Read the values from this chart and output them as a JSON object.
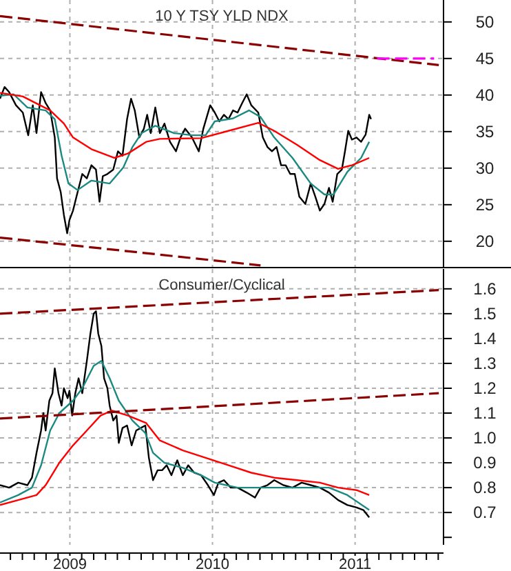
{
  "chart_data": [
    {
      "type": "line",
      "title": "10 Y TSY YLD NDX",
      "xlim": [
        2008.51,
        2011.62
      ],
      "ylim": [
        16.4,
        53
      ],
      "xticks": [
        2009,
        2010,
        2011
      ],
      "yticks": [
        20,
        25,
        30,
        35,
        40,
        45,
        50
      ],
      "tick_labels": "y",
      "grid": true,
      "line_style": "solid",
      "series": [
        {
          "color": "#000000",
          "x": [
            2008.51,
            2008.542,
            2008.574,
            2008.622,
            2008.67,
            2008.708,
            2008.74,
            2008.766,
            2008.798,
            2008.83,
            2008.862,
            2008.894,
            2008.91,
            2008.936,
            2008.958,
            2008.981,
            2008.997,
            2009.022,
            2009.054,
            2009.087,
            2009.119,
            2009.151,
            2009.183,
            2009.208,
            2009.231,
            2009.263,
            2009.304,
            2009.337,
            2009.369,
            2009.401,
            2009.429,
            2009.455,
            2009.487,
            2009.519,
            2009.542,
            2009.567,
            2009.599,
            2009.631,
            2009.663,
            2009.702,
            2009.744,
            2009.776,
            2009.808,
            2009.856,
            2009.904,
            2009.936,
            2009.984,
            2010.016,
            2010.048,
            2010.08,
            2010.112,
            2010.144,
            2010.176,
            2010.208,
            2010.24,
            2010.272,
            2010.321,
            2010.353,
            2010.385,
            2010.417,
            2010.449,
            2010.481,
            2010.513,
            2010.545,
            2010.577,
            2010.609,
            2010.651,
            2010.689,
            2010.721,
            2010.753,
            2010.785,
            2010.817,
            2010.843,
            2010.875,
            2010.907,
            2010.929,
            2010.952,
            2010.978,
            2011.01,
            2011.042,
            2011.074,
            2011.099,
            2011.112
          ],
          "values": [
            39.5,
            41.1,
            40.4,
            38.6,
            37.6,
            34.5,
            38.6,
            34.8,
            40.4,
            38.9,
            37.9,
            34.2,
            28.6,
            26.7,
            23.6,
            21.1,
            22.9,
            24.2,
            26.7,
            29.2,
            28.6,
            30.4,
            29.8,
            25.4,
            28.9,
            29.2,
            29.8,
            32.3,
            31.7,
            36.7,
            39.5,
            37.9,
            34.2,
            35.4,
            37.3,
            34.8,
            38.3,
            34.8,
            36.1,
            33.6,
            32.3,
            34.2,
            35.4,
            34.2,
            32.3,
            35.4,
            38.6,
            37.6,
            36.4,
            37.3,
            36.7,
            37.9,
            37.6,
            38.9,
            40.1,
            38.6,
            37.6,
            34.2,
            32.9,
            32.3,
            32.9,
            30.4,
            30.4,
            29.2,
            29.2,
            26.1,
            25.1,
            27.9,
            26.1,
            24.2,
            25.1,
            27.3,
            25.4,
            29.2,
            29.8,
            32.3,
            35.1,
            33.9,
            34.2,
            33.6,
            34.6,
            37.3,
            36.7
          ]
        },
        {
          "color": "#1a8a80",
          "x": [
            2008.51,
            2008.606,
            2008.702,
            2008.83,
            2008.894,
            2008.942,
            2008.99,
            2009.054,
            2009.151,
            2009.279,
            2009.375,
            2009.439,
            2009.503,
            2009.599,
            2009.728,
            2009.856,
            2009.952,
            2010.016,
            2010.144,
            2010.256,
            2010.337,
            2010.433,
            2010.561,
            2010.689,
            2010.785,
            2010.849,
            2010.946,
            2011.042,
            2011.099
          ],
          "values": [
            39.9,
            40.1,
            38.3,
            37.9,
            36.7,
            31.7,
            27.9,
            27.0,
            28.3,
            27.9,
            30.1,
            32.9,
            34.8,
            35.8,
            34.8,
            34.5,
            34.5,
            36.4,
            36.8,
            37.9,
            37.0,
            34.2,
            31.4,
            27.9,
            26.4,
            26.4,
            29.5,
            31.4,
            33.6
          ]
        },
        {
          "color": "#ff0000",
          "x": [
            2008.51,
            2008.67,
            2008.862,
            2008.958,
            2009.022,
            2009.151,
            2009.311,
            2009.407,
            2009.535,
            2009.631,
            2009.92,
            2010.112,
            2010.321,
            2010.433,
            2010.593,
            2010.753,
            2010.881,
            2010.978,
            2011.099
          ],
          "values": [
            40.3,
            39.8,
            37.9,
            36.1,
            34.2,
            32.6,
            31.4,
            32.0,
            33.6,
            34.0,
            34.1,
            35.1,
            36.2,
            35.1,
            33.2,
            31.1,
            29.9,
            30.4,
            31.4
          ]
        },
        {
          "color": "#8b0000",
          "line_style": "dashed",
          "x": [
            2008.51,
            2011.587
          ],
          "values": [
            50.8,
            44.1
          ]
        },
        {
          "color": "#8b0000",
          "line_style": "dashed",
          "x": [
            2008.51,
            2010.337
          ],
          "values": [
            20.5,
            16.7
          ]
        },
        {
          "color": "#ff00ff",
          "line_style": "dashed",
          "x": [
            2011.154,
            2011.554
          ],
          "values": [
            45,
            45
          ]
        }
      ]
    },
    {
      "type": "line",
      "title": "Consumer/Cyclical",
      "xlim": [
        2008.51,
        2011.62
      ],
      "ylim": [
        0.57,
        1.68
      ],
      "xticks": [
        {
          "value": 2008.583,
          "label": null
        },
        {
          "value": 2008.667,
          "label": null
        },
        {
          "value": 2008.75,
          "label": null
        },
        {
          "value": 2008.833,
          "label": null
        },
        {
          "value": 2008.917,
          "label": null
        },
        2009,
        {
          "value": 2009.083,
          "label": null
        },
        {
          "value": 2009.167,
          "label": null
        },
        {
          "value": 2009.25,
          "label": null
        },
        {
          "value": 2009.333,
          "label": null
        },
        {
          "value": 2009.417,
          "label": null
        },
        {
          "value": 2009.5,
          "label": null
        },
        {
          "value": 2009.583,
          "label": null
        },
        {
          "value": 2009.667,
          "label": null
        },
        {
          "value": 2009.75,
          "label": null
        },
        {
          "value": 2009.833,
          "label": null
        },
        {
          "value": 2009.917,
          "label": null
        },
        2010,
        {
          "value": 2010.083,
          "label": null
        },
        {
          "value": 2010.167,
          "label": null
        },
        {
          "value": 2010.25,
          "label": null
        },
        {
          "value": 2010.333,
          "label": null
        },
        {
          "value": 2010.417,
          "label": null
        },
        {
          "value": 2010.5,
          "label": null
        },
        {
          "value": 2010.583,
          "label": null
        },
        {
          "value": 2010.667,
          "label": null
        },
        {
          "value": 2010.75,
          "label": null
        },
        {
          "value": 2010.833,
          "label": null
        },
        {
          "value": 2010.917,
          "label": null
        },
        2011,
        {
          "value": 2011.083,
          "label": null
        },
        {
          "value": 2011.167,
          "label": null
        },
        {
          "value": 2011.25,
          "label": null
        },
        {
          "value": 2011.333,
          "label": null
        },
        {
          "value": 2011.417,
          "label": null
        },
        {
          "value": 2011.5,
          "label": null
        },
        {
          "value": 2011.583,
          "label": null
        }
      ],
      "yticks": [
        {
          "value": 0.6,
          "label": null
        },
        0.7,
        0.8,
        0.9,
        {
          "value": 1,
          "label": "1.0"
        },
        1.1,
        1.2,
        1.3,
        1.4,
        1.5,
        1.6
      ],
      "grid": true,
      "line_style": "solid",
      "series": [
        {
          "color": "#000000",
          "x": [
            2008.51,
            2008.574,
            2008.638,
            2008.702,
            2008.734,
            2008.766,
            2008.798,
            2008.814,
            2008.83,
            2008.856,
            2008.878,
            2008.894,
            2008.92,
            2008.942,
            2008.958,
            2008.984,
            2008.997,
            2009.016,
            2009.038,
            2009.061,
            2009.087,
            2009.119,
            2009.144,
            2009.167,
            2009.183,
            2009.199,
            2009.221,
            2009.24,
            2009.263,
            2009.279,
            2009.304,
            2009.327,
            2009.343,
            2009.369,
            2009.401,
            2009.433,
            2009.465,
            2009.497,
            2009.529,
            2009.554,
            2009.583,
            2009.615,
            2009.647,
            2009.679,
            2009.712,
            2009.753,
            2009.792,
            2009.83,
            2009.872,
            2009.92,
            2009.968,
            2010.01,
            2010.042,
            2010.08,
            2010.128,
            2010.176,
            2010.24,
            2010.298,
            2010.337,
            2010.385,
            2010.433,
            2010.497,
            2010.561,
            2010.625,
            2010.689,
            2010.753,
            2010.817,
            2010.881,
            2010.946,
            2011.01,
            2011.058,
            2011.099
          ],
          "values": [
            0.81,
            0.8,
            0.82,
            0.81,
            0.84,
            0.94,
            1.03,
            1.1,
            1.03,
            1.15,
            1.18,
            1.28,
            1.18,
            1.13,
            1.2,
            1.16,
            1.19,
            1.09,
            1.18,
            1.24,
            1.18,
            1.31,
            1.42,
            1.5,
            1.51,
            1.42,
            1.37,
            1.24,
            1.2,
            1.13,
            1.07,
            1.09,
            0.98,
            1.04,
            1.05,
            0.97,
            1.03,
            1.04,
            1.05,
            0.92,
            0.83,
            0.87,
            0.87,
            0.89,
            0.85,
            0.91,
            0.85,
            0.89,
            0.86,
            0.85,
            0.81,
            0.77,
            0.82,
            0.83,
            0.8,
            0.8,
            0.78,
            0.76,
            0.8,
            0.81,
            0.83,
            0.81,
            0.8,
            0.82,
            0.81,
            0.8,
            0.78,
            0.75,
            0.73,
            0.72,
            0.71,
            0.68
          ]
        },
        {
          "color": "#1a8a80",
          "x": [
            2008.51,
            2008.638,
            2008.734,
            2008.798,
            2008.862,
            2008.926,
            2009.022,
            2009.087,
            2009.167,
            2009.221,
            2009.279,
            2009.343,
            2009.439,
            2009.529,
            2009.583,
            2009.663,
            2009.792,
            2009.92,
            2010.016,
            2010.176,
            2010.337,
            2010.497,
            2010.689,
            2010.817,
            2010.946,
            2011.099
          ],
          "values": [
            0.74,
            0.77,
            0.8,
            0.89,
            1.03,
            1.1,
            1.15,
            1.2,
            1.29,
            1.31,
            1.24,
            1.15,
            1.07,
            1.02,
            0.94,
            0.9,
            0.88,
            0.85,
            0.82,
            0.8,
            0.8,
            0.8,
            0.8,
            0.8,
            0.77,
            0.71
          ]
        },
        {
          "color": "#ff0000",
          "x": [
            2008.51,
            2008.638,
            2008.766,
            2008.83,
            2008.926,
            2009.022,
            2009.119,
            2009.215,
            2009.295,
            2009.407,
            2009.535,
            2009.631,
            2009.792,
            2009.952,
            2010.112,
            2010.272,
            2010.433,
            2010.593,
            2010.753,
            2010.881,
            2011.01,
            2011.099
          ],
          "values": [
            0.73,
            0.75,
            0.77,
            0.81,
            0.9,
            0.97,
            1.03,
            1.09,
            1.11,
            1.09,
            1.06,
            0.99,
            0.95,
            0.92,
            0.89,
            0.86,
            0.84,
            0.83,
            0.82,
            0.8,
            0.79,
            0.77
          ]
        },
        {
          "color": "#8b0000",
          "line_style": "dashed",
          "x": [
            2008.51,
            2011.587
          ],
          "values": [
            1.5,
            1.595
          ]
        },
        {
          "color": "#8b0000",
          "line_style": "dashed",
          "x": [
            2008.51,
            2011.587
          ],
          "values": [
            1.078,
            1.18
          ]
        }
      ]
    }
  ]
}
